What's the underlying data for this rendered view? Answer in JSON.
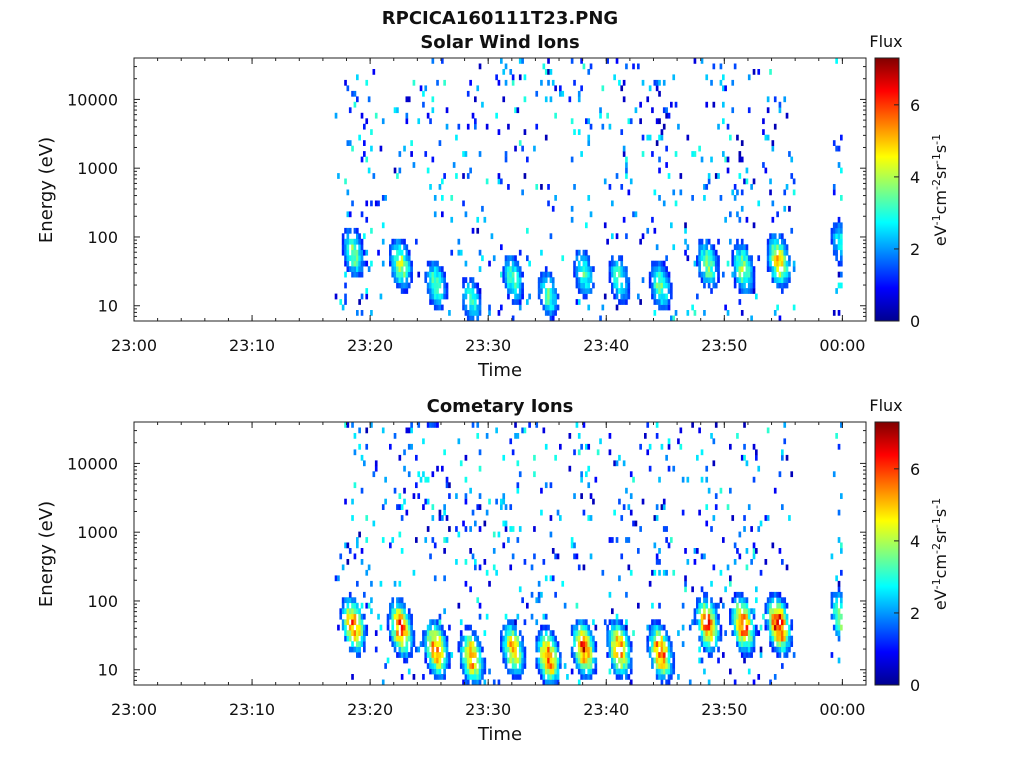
{
  "figure_title": "RPCICA160111T23.PNG",
  "chart_data": [
    {
      "type": "heatmap",
      "title": "Solar Wind Ions",
      "xlabel": "Time",
      "ylabel": "Energy (eV)",
      "x_ticks": [
        "23:00",
        "23:10",
        "23:20",
        "23:30",
        "23:40",
        "23:50",
        "00:00"
      ],
      "x_range": [
        "23:00",
        "00:02"
      ],
      "y_scale": "log",
      "y_ticks": [
        "10",
        "100",
        "1000",
        "10000"
      ],
      "y_range": [
        6,
        40000
      ],
      "data_interval": [
        "23:17",
        "00:00"
      ],
      "data_gap": [
        "23:56",
        "23:59"
      ],
      "colorbar": {
        "label": "Flux",
        "unit": "eV-1cm-2sr-1s-1",
        "range": [
          0,
          7.3
        ],
        "ticks": [
          "0",
          "2",
          "4",
          "6"
        ]
      },
      "bursts": [
        {
          "time": "23:18.5",
          "peak_energy_ev": 60,
          "peak_flux": 3.8
        },
        {
          "time": "23:22.5",
          "peak_energy_ev": 40,
          "peak_flux": 4.2
        },
        {
          "time": "23:25.5",
          "peak_energy_ev": 20,
          "peak_flux": 3.6
        },
        {
          "time": "23:28.5",
          "peak_energy_ev": 12,
          "peak_flux": 3.2
        },
        {
          "time": "23:32",
          "peak_energy_ev": 25,
          "peak_flux": 3.4
        },
        {
          "time": "23:35",
          "peak_energy_ev": 15,
          "peak_flux": 3.4
        },
        {
          "time": "23:38",
          "peak_energy_ev": 30,
          "peak_flux": 3.3
        },
        {
          "time": "23:41",
          "peak_energy_ev": 25,
          "peak_flux": 3.4
        },
        {
          "time": "23:44.5",
          "peak_energy_ev": 20,
          "peak_flux": 3.7
        },
        {
          "time": "23:48.5",
          "peak_energy_ev": 40,
          "peak_flux": 3.8
        },
        {
          "time": "23:51.5",
          "peak_energy_ev": 35,
          "peak_flux": 4.0
        },
        {
          "time": "23:54.5",
          "peak_energy_ev": 45,
          "peak_flux": 5.0
        },
        {
          "time": "23:59.8",
          "peak_energy_ev": 80,
          "peak_flux": 3.0
        }
      ]
    },
    {
      "type": "heatmap",
      "title": "Cometary Ions",
      "xlabel": "Time",
      "ylabel": "Energy (eV)",
      "x_ticks": [
        "23:00",
        "23:10",
        "23:20",
        "23:30",
        "23:40",
        "23:50",
        "00:00"
      ],
      "x_range": [
        "23:00",
        "00:02"
      ],
      "y_scale": "log",
      "y_ticks": [
        "10",
        "100",
        "1000",
        "10000"
      ],
      "y_range": [
        6,
        40000
      ],
      "data_interval": [
        "23:17",
        "00:00"
      ],
      "data_gap": [
        "23:56",
        "23:59"
      ],
      "colorbar": {
        "label": "Flux",
        "unit": "eV-1cm-2sr-1s-1",
        "range": [
          0,
          7.3
        ],
        "ticks": [
          "0",
          "2",
          "4",
          "6"
        ]
      },
      "bursts": [
        {
          "time": "23:18.5",
          "peak_energy_ev": 45,
          "peak_flux": 6.0
        },
        {
          "time": "23:22.5",
          "peak_energy_ev": 40,
          "peak_flux": 6.3
        },
        {
          "time": "23:25.5",
          "peak_energy_ev": 20,
          "peak_flux": 6.0
        },
        {
          "time": "23:28.5",
          "peak_energy_ev": 15,
          "peak_flux": 5.8
        },
        {
          "time": "23:32",
          "peak_energy_ev": 20,
          "peak_flux": 5.2
        },
        {
          "time": "23:35",
          "peak_energy_ev": 15,
          "peak_flux": 6.1
        },
        {
          "time": "23:38",
          "peak_energy_ev": 20,
          "peak_flux": 6.2
        },
        {
          "time": "23:41",
          "peak_energy_ev": 20,
          "peak_flux": 6.0
        },
        {
          "time": "23:44.5",
          "peak_energy_ev": 18,
          "peak_flux": 6.2
        },
        {
          "time": "23:48.5",
          "peak_energy_ev": 45,
          "peak_flux": 6.0
        },
        {
          "time": "23:51.5",
          "peak_energy_ev": 45,
          "peak_flux": 6.3
        },
        {
          "time": "23:54.5",
          "peak_energy_ev": 45,
          "peak_flux": 7.0
        },
        {
          "time": "23:59.8",
          "peak_energy_ev": 60,
          "peak_flux": 4.2
        }
      ]
    }
  ]
}
